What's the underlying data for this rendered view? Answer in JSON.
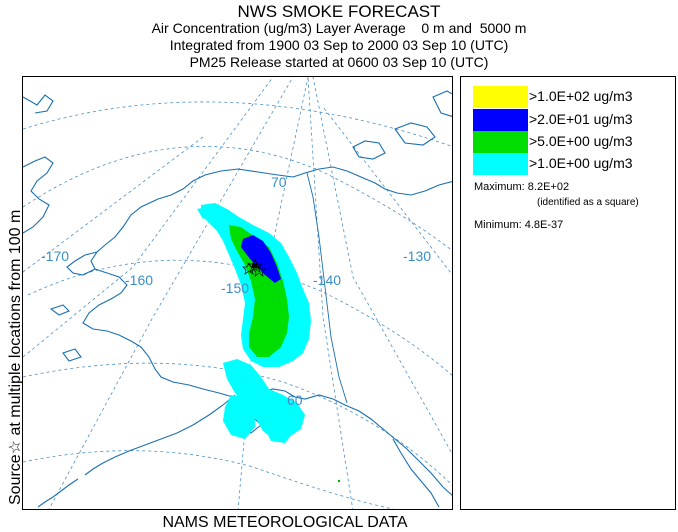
{
  "header": {
    "title": "NWS SMOKE FORECAST",
    "line2": "Air Concentration (ug/m3) Layer Average    0 m and  5000 m",
    "line3": "Integrated from 1900 03 Sep to 2000 03 Sep 10 (UTC)",
    "line4": "PM25 Release started at 0600 03 Sep 10 (UTC)"
  },
  "side_label": "Source☆  at multiple locations  from   100 m",
  "map": {
    "grid_labels": {
      "lat_70": "70",
      "lat_60": "60",
      "lon_170": "-170",
      "lon_160": "-160",
      "lon_150": "-150",
      "lon_140": "-140",
      "lon_130": "-130"
    },
    "colors": {
      "coast": "#1a6fb0",
      "grid": "#4a90c8",
      "label": "#3a8fc8"
    }
  },
  "legend": {
    "items": [
      {
        "label": ">1.0E+02 ug/m3",
        "color": "#ffff00"
      },
      {
        "label": ">2.0E+01 ug/m3",
        "color": "#0000ff"
      },
      {
        "label": ">5.0E+00 ug/m3",
        "color": "#00dd00"
      },
      {
        "label": ">1.0E+00 ug/m3",
        "color": "#00ffff"
      }
    ],
    "maximum": "Maximum: 8.2E+02",
    "maximum_note": "(identified as a square)",
    "minimum": "Minimum: 4.8E-37"
  },
  "footer": "NAMS METEOROLOGICAL DATA"
}
